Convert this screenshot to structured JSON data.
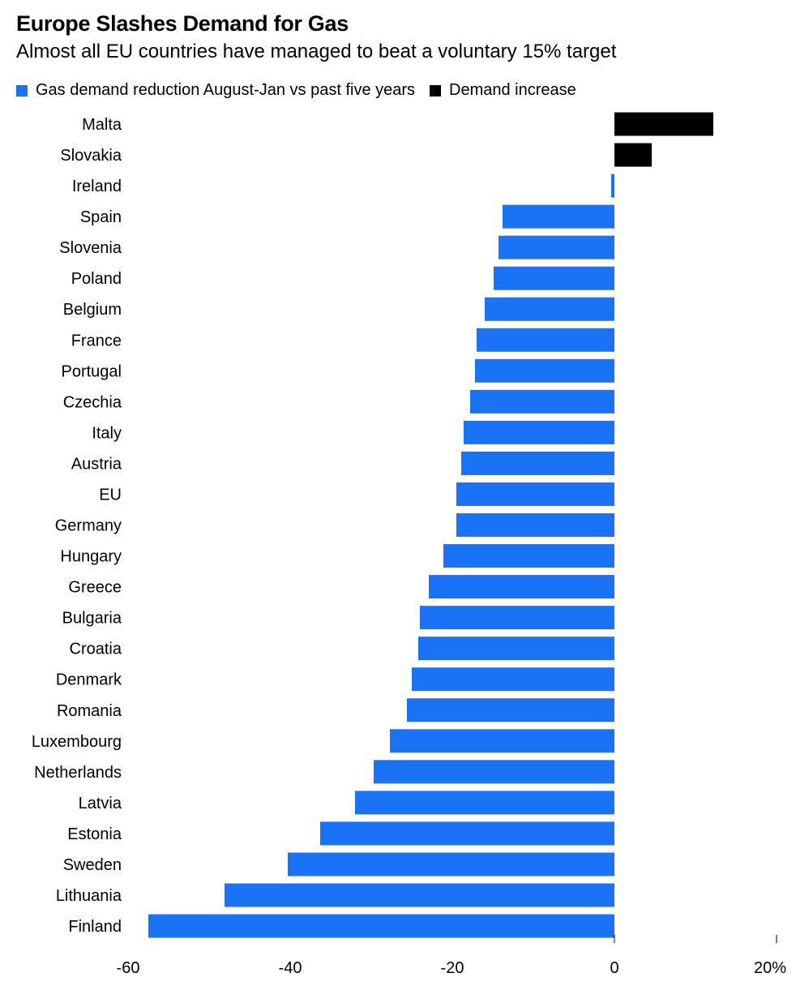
{
  "chart_data": {
    "type": "bar",
    "orientation": "horizontal",
    "title": "Europe Slashes Demand for Gas",
    "subtitle": "Almost all EU countries have managed to beat a voluntary 15% target",
    "legend": [
      {
        "label": "Gas demand reduction August-Jan vs past five years",
        "color": "#1a73f5"
      },
      {
        "label": "Demand increase",
        "color": "#000000"
      }
    ],
    "legend_position": "top-left",
    "categories": [
      "Malta",
      "Slovakia",
      "Ireland",
      "Spain",
      "Slovenia",
      "Poland",
      "Belgium",
      "France",
      "Portugal",
      "Czechia",
      "Italy",
      "Austria",
      "EU",
      "Germany",
      "Hungary",
      "Greece",
      "Bulgaria",
      "Croatia",
      "Denmark",
      "Romania",
      "Luxembourg",
      "Netherlands",
      "Latvia",
      "Estonia",
      "Sweden",
      "Lithuania",
      "Finland"
    ],
    "values": [
      12.2,
      4.6,
      -0.4,
      -13.8,
      -14.3,
      -14.9,
      -16.0,
      -17.0,
      -17.2,
      -17.8,
      -18.6,
      -18.9,
      -19.5,
      -19.5,
      -21.1,
      -22.9,
      -24.0,
      -24.2,
      -25.0,
      -25.6,
      -27.7,
      -29.7,
      -32.0,
      -36.3,
      -40.3,
      -48.1,
      -57.5
    ],
    "xlim": [
      -60,
      20
    ],
    "xticks": [
      "-60",
      "-40",
      "-20",
      "0",
      "20%"
    ],
    "xtick_values": [
      -60,
      -40,
      -20,
      0,
      20
    ],
    "grid": false,
    "colors": {
      "reduction": "#1a73f5",
      "increase": "#000000"
    }
  }
}
